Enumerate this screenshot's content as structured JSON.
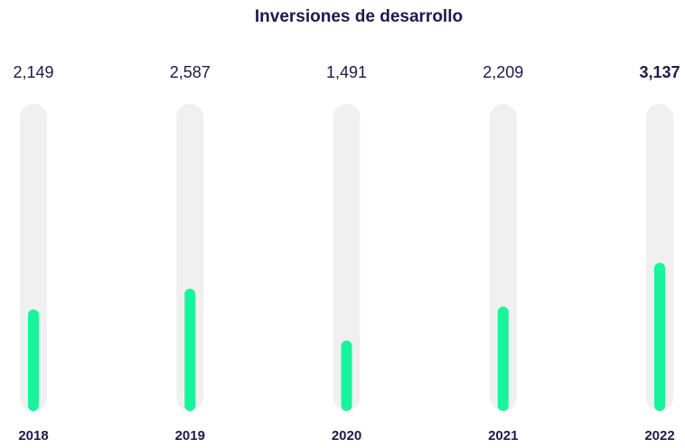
{
  "chart_data": {
    "type": "bar",
    "title": "Inversiones de desarrollo",
    "categories": [
      "2018",
      "2019",
      "2020",
      "2021",
      "2022"
    ],
    "values": [
      2149,
      2587,
      1491,
      2209,
      3137
    ],
    "value_labels": [
      "2,149",
      "2,587",
      "1,491",
      "2,209",
      "3,137"
    ],
    "highlight_index": 4,
    "color": "#17f59c",
    "track_color": "#f0f0f0",
    "ylim": [
      0,
      6500
    ]
  }
}
